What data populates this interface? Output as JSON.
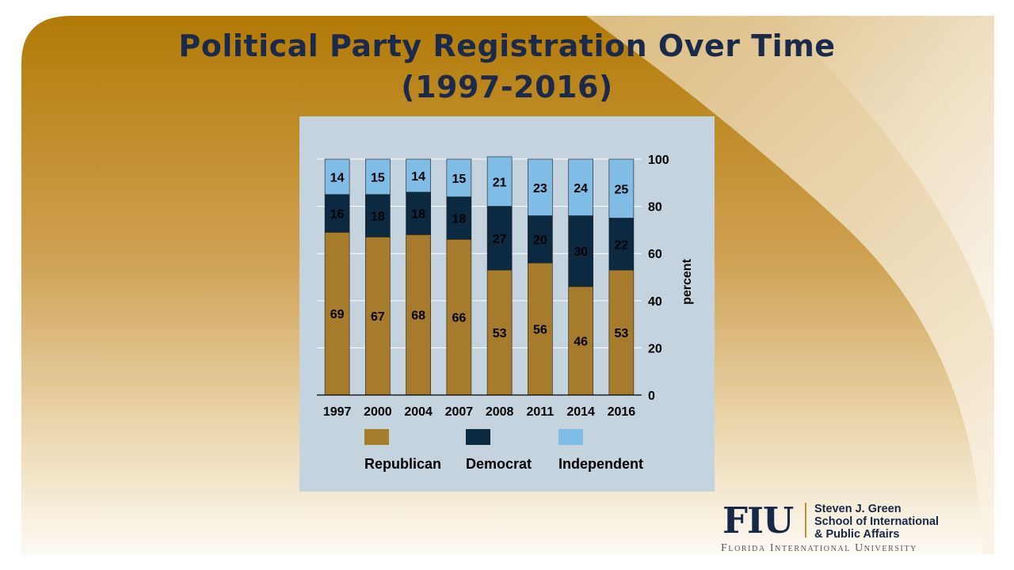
{
  "slide": {
    "title_line1": "Political Party Registration Over Time",
    "title_line2": "(1997-2016)"
  },
  "colors": {
    "republican": "#a67c2c",
    "democrat": "#0b2a42",
    "independent": "#7fbde6",
    "panel": "#c5d3df",
    "title": "#1b2a4a"
  },
  "chart_data": {
    "type": "bar",
    "stacked": true,
    "categories": [
      "1997",
      "2000",
      "2004",
      "2007",
      "2008",
      "2011",
      "2014",
      "2016"
    ],
    "series": [
      {
        "name": "Republican",
        "values": [
          69,
          67,
          68,
          66,
          53,
          56,
          46,
          53
        ]
      },
      {
        "name": "Democrat",
        "values": [
          16,
          18,
          18,
          18,
          27,
          20,
          30,
          22
        ]
      },
      {
        "name": "Independent",
        "values": [
          14,
          15,
          14,
          15,
          21,
          23,
          24,
          25
        ]
      }
    ],
    "ylabel": "percent",
    "ylim": [
      0,
      100
    ],
    "yticks": [
      "0",
      "20",
      "40",
      "60",
      "80",
      "100"
    ],
    "y_axis_side": "right",
    "legend_position": "bottom",
    "grid": true
  },
  "logo": {
    "mark": "FIU",
    "school_line1": "Steven J. Green",
    "school_line2": "School of International",
    "school_line3": "& Public Affairs",
    "university": "Florida International University"
  }
}
